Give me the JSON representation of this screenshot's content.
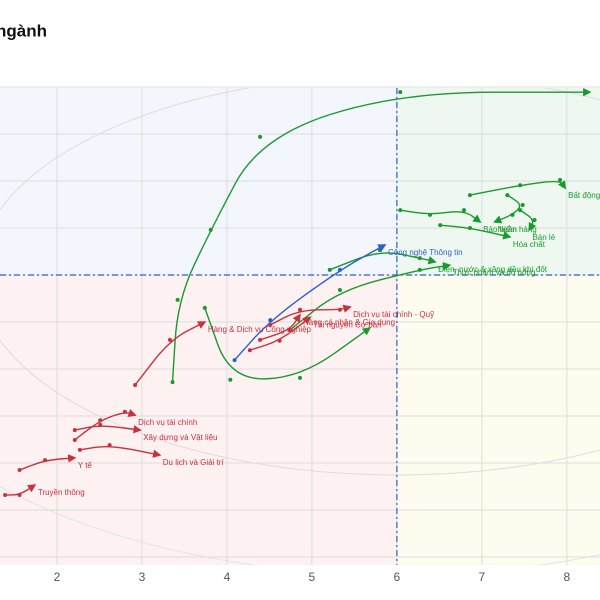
{
  "chart_data": {
    "type": "rrg",
    "title": "ngành",
    "xlim": [
      1.33,
      8.39
    ],
    "ylim": [
      0,
      10
    ],
    "xticks": [
      2,
      3,
      4,
      5,
      6,
      7,
      8
    ],
    "yticks": [
      0,
      1,
      2,
      3,
      4,
      5,
      6,
      7,
      8,
      9,
      10
    ],
    "center": [
      6,
      6
    ],
    "grid": true,
    "series": [
      {
        "name": "Bất động sản",
        "color": "#1a9a2e",
        "x": [
          6.86,
          7.45,
          7.92,
          7.98
        ],
        "y": [
          7.7,
          7.91,
          8.02,
          7.85
        ]
      },
      {
        "name": "Ngân hàng",
        "color": "#1a9a2e",
        "x": [
          7.3,
          7.48,
          7.36,
          7.15
        ],
        "y": [
          7.7,
          7.49,
          7.28,
          7.13
        ]
      },
      {
        "name": "Bảo hiểm",
        "color": "#1a9a2e",
        "x": [
          6.04,
          6.39,
          6.79,
          6.98
        ],
        "y": [
          7.38,
          7.28,
          7.38,
          7.13
        ]
      },
      {
        "name": "Hóa chất",
        "color": "#1a9a2e",
        "x": [
          6.51,
          6.86,
          7.33
        ],
        "y": [
          7.06,
          7.0,
          6.81
        ]
      },
      {
        "name": "Bán lẻ",
        "color": "#1a9a2e",
        "x": [
          7.45,
          7.62,
          7.56
        ],
        "y": [
          7.38,
          7.17,
          6.96
        ]
      },
      {
        "name": "Điện, nước & xăng dầu khí đốt",
        "color": "#1a9a2e",
        "x": [
          5.21,
          5.8,
          6.27,
          6.45
        ],
        "y": [
          6.11,
          6.53,
          6.36,
          6.28
        ]
      },
      {
        "name": "Thực phẩm và đồ uống",
        "color": "#1a9a2e",
        "x": [
          4.74,
          5.33,
          6.27,
          6.62
        ],
        "y": [
          4.83,
          5.68,
          6.11,
          6.21
        ]
      },
      {
        "color": "#1a9a2e",
        "x": [
          3.36,
          3.42,
          3.81,
          4.39,
          6.04,
          8.27
        ],
        "y": [
          3.72,
          5.47,
          6.96,
          8.94,
          9.89,
          9.89
        ]
      },
      {
        "color": "#1a9a2e",
        "x": [
          3.74,
          4.04,
          4.86,
          5.68
        ],
        "y": [
          5.3,
          3.77,
          3.81,
          4.87
        ]
      },
      {
        "name": "Công nghệ Thông tin",
        "color": "#2a5fd0",
        "x": [
          4.09,
          4.51,
          5.33,
          5.86
        ],
        "y": [
          4.19,
          5.04,
          6.11,
          6.64
        ]
      },
      {
        "name": "Dịch vụ tài chính - Quỹ",
        "color": "#c8323c",
        "x": [
          4.51,
          4.86,
          5.33,
          5.45
        ],
        "y": [
          4.94,
          5.26,
          5.26,
          5.32
        ]
      },
      {
        "name": "Tài nguyên Cơ bản",
        "color": "#c8323c",
        "x": [
          4.27,
          4.62,
          4.98
        ],
        "y": [
          4.4,
          4.6,
          5.1
        ]
      },
      {
        "name": "Hàng & Dịch vụ Công nghiệp",
        "color": "#c8323c",
        "x": [
          2.92,
          3.33,
          3.74
        ],
        "y": [
          3.66,
          4.62,
          5.0
        ]
      },
      {
        "name": "Hàng cá nhân & Gia dụng",
        "color": "#c8323c",
        "x": [
          4.39,
          4.74,
          4.86
        ],
        "y": [
          4.62,
          4.83,
          5.15
        ]
      },
      {
        "name": "Dịch vụ tài chính",
        "color": "#c8323c",
        "x": [
          2.21,
          2.51,
          2.8,
          2.92
        ],
        "y": [
          2.49,
          2.91,
          3.09,
          3.02
        ]
      },
      {
        "name": "Xây dựng và Vật liệu",
        "color": "#c8323c",
        "x": [
          2.21,
          2.51,
          2.98
        ],
        "y": [
          2.7,
          2.81,
          2.7
        ]
      },
      {
        "name": "Du lịch và Giải trí",
        "color": "#c8323c",
        "x": [
          2.27,
          2.62,
          3.21
        ],
        "y": [
          2.28,
          2.38,
          2.17
        ]
      },
      {
        "name": "Y tế",
        "color": "#c8323c",
        "x": [
          1.56,
          1.86,
          2.21
        ],
        "y": [
          1.85,
          2.06,
          2.11
        ]
      },
      {
        "name": "Truyền thông",
        "color": "#c8323c",
        "x": [
          1.39,
          1.56,
          1.74
        ],
        "y": [
          1.32,
          1.32,
          1.53
        ]
      }
    ]
  }
}
